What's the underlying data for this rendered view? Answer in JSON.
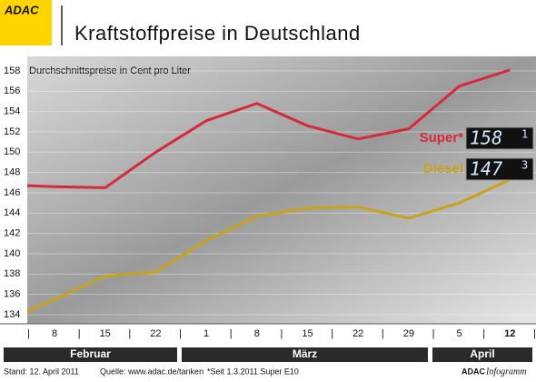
{
  "chart_data": {
    "type": "line",
    "logo": "ADAC",
    "title": "Kraftstoffpreise in Deutschland",
    "subtitle": "Durchschnittspreise in Cent pro Liter",
    "categories": [
      null,
      "8",
      "15",
      "22",
      "1",
      "8",
      "15",
      "22",
      "29",
      "5",
      "12"
    ],
    "months": [
      "Februar",
      "März",
      "April"
    ],
    "series": [
      {
        "name": "Super*",
        "color": "#d42a3c",
        "values": [
          146.7,
          146.6,
          146.5,
          150.0,
          153.1,
          154.8,
          152.6,
          151.3,
          152.3,
          156.5,
          158.1
        ],
        "display": [
          "158",
          "1"
        ]
      },
      {
        "name": "Diesel",
        "color": "#c9a21c",
        "values": [
          134.3,
          135.5,
          137.8,
          138.2,
          141.3,
          143.7,
          144.5,
          144.6,
          143.5,
          145.0,
          147.3
        ],
        "display": [
          "147",
          "3"
        ]
      }
    ],
    "ylim": [
      134,
      158
    ],
    "yticks": [
      134,
      136,
      138,
      140,
      142,
      144,
      146,
      148,
      150,
      152,
      154,
      156,
      158
    ],
    "grid": true,
    "footer": [
      "Stand:  12. April 2011",
      "Quelle: www.adac.de/tanken",
      "*Seit 1.3.2011 Super E10"
    ],
    "brand": [
      "ADAC",
      "Infogramm"
    ]
  }
}
